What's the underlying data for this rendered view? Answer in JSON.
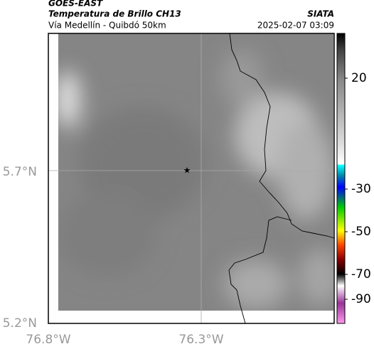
{
  "header": {
    "agency": "GOES-EAST",
    "product": "Temperatura de Brillo CH13",
    "location": "Vía Medellín - Quibdó 50km",
    "source": "SIATA",
    "datetime": "2025-02-07 03:09"
  },
  "axes": {
    "lat_labels": [
      "5.7°N",
      "5.2°N"
    ],
    "lon_labels": [
      "76.8°W",
      "76.3°W"
    ]
  },
  "colorbar": {
    "tick_labels": [
      "20",
      "-30",
      "-50",
      "-70",
      "-90"
    ]
  }
}
